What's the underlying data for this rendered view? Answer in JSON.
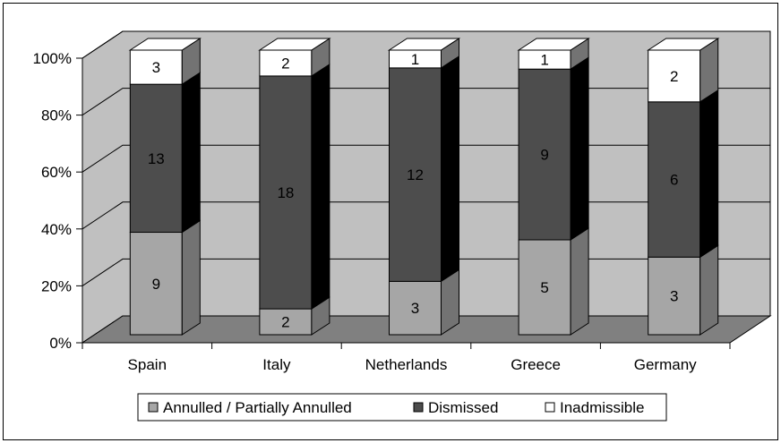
{
  "chart_data": {
    "type": "bar",
    "stacked": true,
    "normalized": true,
    "three_d": true,
    "categories": [
      "Spain",
      "Italy",
      "Netherlands",
      "Greece",
      "Germany"
    ],
    "series": [
      {
        "name": "Annulled / Partially Annulled",
        "values": [
          9,
          2,
          3,
          5,
          3
        ],
        "color": "#a6a6a6"
      },
      {
        "name": "Dismissed",
        "values": [
          13,
          18,
          12,
          9,
          6
        ],
        "color": "#4d4d4d"
      },
      {
        "name": "Inadmissible",
        "values": [
          3,
          2,
          1,
          1,
          2
        ],
        "color": "#ffffff"
      }
    ],
    "yticks": [
      "0%",
      "20%",
      "40%",
      "60%",
      "80%",
      "100%"
    ],
    "ylim": [
      0,
      100
    ],
    "grid": true,
    "legend_position": "bottom"
  },
  "colors": {
    "wall": "#c0c0c0",
    "floor": "#808080",
    "bar_side_top": "#737373",
    "bar_side_dark": "#000000",
    "axis": "#000000"
  }
}
